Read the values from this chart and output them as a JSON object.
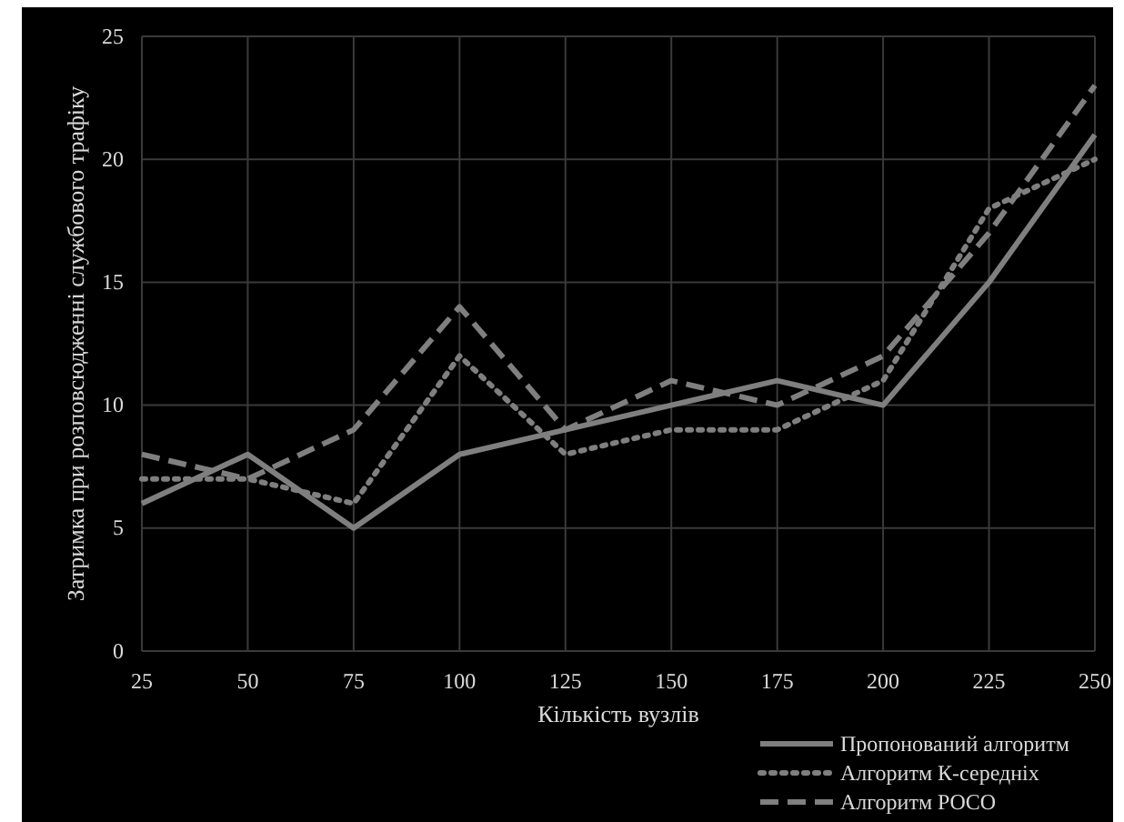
{
  "chart_data": {
    "type": "line",
    "xlabel": "Кількість вузлів",
    "ylabel": "Затримка при розповсюдженні службового трафіку",
    "x": [
      25,
      50,
      75,
      100,
      125,
      150,
      175,
      200,
      225,
      250
    ],
    "xlim": [
      25,
      250
    ],
    "xticks": [
      25,
      50,
      75,
      100,
      125,
      150,
      175,
      200,
      225,
      250
    ],
    "ylim": [
      0,
      25
    ],
    "yticks": [
      0,
      5,
      10,
      15,
      20,
      25
    ],
    "grid": true,
    "legend": "bottom right",
    "series": [
      {
        "name": "Пропонований алгоритм",
        "color": "#7f7f7f",
        "line_style": "solid",
        "values": [
          6,
          8,
          5,
          8,
          9,
          10,
          11,
          10,
          15,
          21
        ]
      },
      {
        "name": "Алгоритм К-середніх",
        "color": "#7f7f7f",
        "line_style": "dotted",
        "values": [
          7,
          7,
          6,
          12,
          8,
          9,
          9,
          11,
          18,
          20
        ]
      },
      {
        "name": "Алгоритм POCO",
        "color": "#7f7f7f",
        "line_style": "dashed",
        "values": [
          8,
          7,
          9,
          14,
          9,
          11,
          10,
          12,
          17,
          23
        ]
      }
    ]
  }
}
